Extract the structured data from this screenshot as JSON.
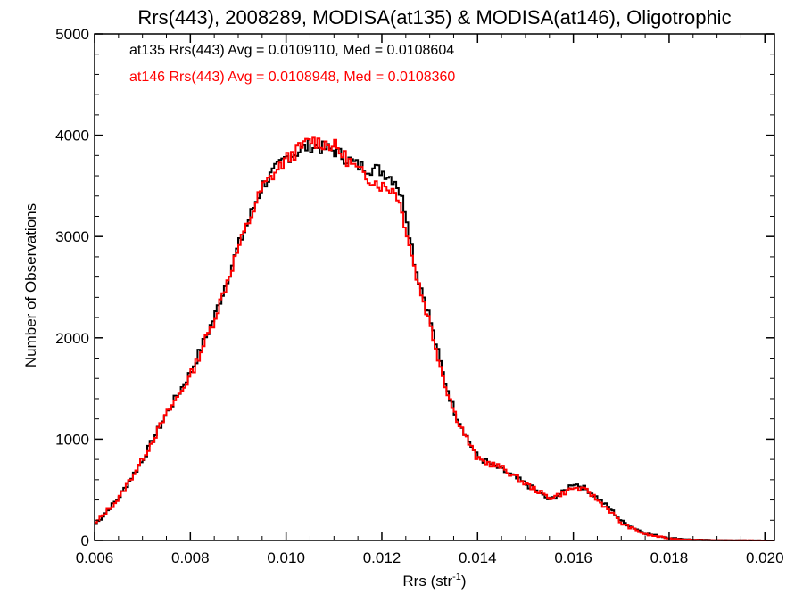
{
  "chart_data": {
    "type": "line",
    "title": "Rrs(443), 2008289, MODISA(at135) & MODISA(at146), Oligotrophic",
    "xlabel_base": "Rrs (str",
    "xlabel_sup": "-1",
    "xlabel_close": ")",
    "ylabel": "Number of Observations",
    "xlim": [
      0.006,
      0.0202
    ],
    "ylim": [
      0,
      5000
    ],
    "xticks": [
      "0.006",
      "0.008",
      "0.010",
      "0.012",
      "0.014",
      "0.016",
      "0.018",
      "0.020"
    ],
    "yticks": [
      "0",
      "1000",
      "2000",
      "3000",
      "4000",
      "5000"
    ],
    "grid": false,
    "step_style": true,
    "annotations": [
      {
        "text": "at135 Rrs(443) Avg = 0.0109110, Med = 0.0108604",
        "color": "#000000"
      },
      {
        "text": "at146 Rrs(443) Avg = 0.0108948, Med = 0.0108360",
        "color": "#ff0000"
      }
    ],
    "x": [
      0.006,
      0.0065,
      0.007,
      0.0075,
      0.008,
      0.0085,
      0.009,
      0.0095,
      0.01,
      0.0105,
      0.011,
      0.0115,
      0.012,
      0.0123,
      0.0125,
      0.0127,
      0.013,
      0.0133,
      0.0135,
      0.0138,
      0.014,
      0.0145,
      0.015,
      0.0155,
      0.0158,
      0.016,
      0.0163,
      0.0165,
      0.0168,
      0.017,
      0.0175,
      0.018,
      0.0185,
      0.019,
      0.0195,
      0.0202
    ],
    "series": [
      {
        "name": "at135",
        "color": "#000000",
        "values": [
          150,
          420,
          790,
          1250,
          1650,
          2200,
          2900,
          3500,
          3780,
          3900,
          3850,
          3700,
          3650,
          3550,
          3250,
          2700,
          2200,
          1600,
          1300,
          1000,
          820,
          700,
          560,
          400,
          480,
          570,
          500,
          420,
          300,
          190,
          70,
          25,
          8,
          3,
          1,
          0
        ]
      },
      {
        "name": "at146",
        "color": "#ff0000",
        "values": [
          160,
          410,
          800,
          1240,
          1620,
          2180,
          2880,
          3480,
          3760,
          3950,
          3900,
          3650,
          3500,
          3450,
          3100,
          2650,
          2150,
          1580,
          1280,
          980,
          800,
          720,
          560,
          420,
          470,
          520,
          490,
          400,
          280,
          170,
          60,
          20,
          6,
          2,
          1,
          0
        ]
      }
    ]
  }
}
